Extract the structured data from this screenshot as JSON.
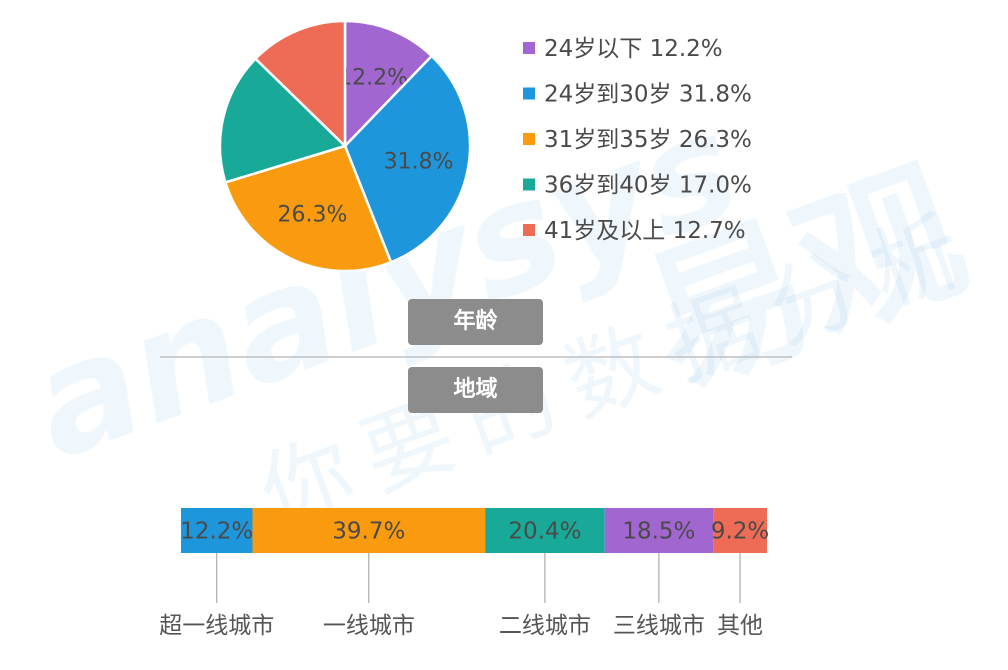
{
  "chart_data": [
    {
      "type": "pie",
      "title": "年龄",
      "slices": [
        {
          "label": "24岁以下",
          "value": 12.2,
          "display": "12.2%",
          "color": "#a166cf"
        },
        {
          "label": "24岁到30岁",
          "value": 31.8,
          "display": "31.8%",
          "color": "#1e96dc"
        },
        {
          "label": "31岁到35岁",
          "value": 26.3,
          "display": "26.3%",
          "color": "#f99a0f"
        },
        {
          "label": "36岁到40岁",
          "value": 17.0,
          "display": "17.0%",
          "color": "#18a998"
        },
        {
          "label": "41岁及以上",
          "value": 12.7,
          "display": "12.7%",
          "color": "#ee6b55"
        }
      ],
      "slice_labels_shown": [
        "12.2%",
        "31.8%",
        "26.3%"
      ],
      "legend_position": "right"
    },
    {
      "type": "bar",
      "orientation": "horizontal-stacked-100",
      "title": "地域",
      "series": [
        {
          "name": "超一线城市",
          "value": 12.2,
          "display": "12.2%",
          "color": "#1e96dc"
        },
        {
          "name": "一线城市",
          "value": 39.7,
          "display": "39.7%",
          "color": "#f99a0f"
        },
        {
          "name": "二线城市",
          "value": 20.4,
          "display": "20.4%",
          "color": "#18a998"
        },
        {
          "name": "三线城市",
          "value": 18.5,
          "display": "18.5%",
          "color": "#a166cf"
        },
        {
          "name": "其他",
          "value": 9.2,
          "display": "9.2%",
          "color": "#ee6b55"
        }
      ]
    }
  ],
  "sections": {
    "age_label": "年龄",
    "region_label": "地域"
  },
  "watermark": {
    "latin": "analysys",
    "brand": "易观",
    "slogan": "你要的数据分析"
  }
}
